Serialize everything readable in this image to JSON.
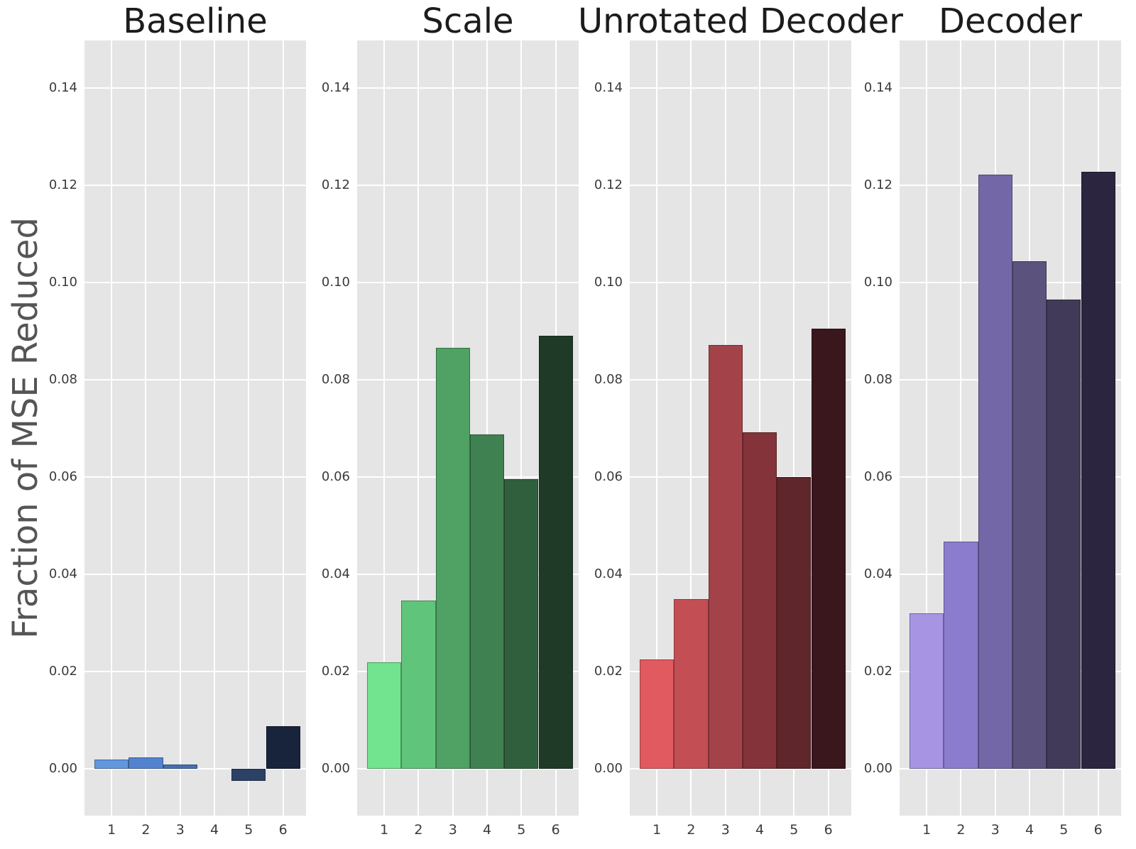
{
  "figure": {
    "ylabel": "Fraction of MSE Reduced",
    "background_color": "#ffffff",
    "panel_background_color": "#e5e5e5",
    "grid_color": "#ffffff",
    "title_color": "#1c1c1c",
    "tick_label_color": "#3b3b3b",
    "ylabel_color": "#555555"
  },
  "chart_data": [
    {
      "type": "bar",
      "title": "Baseline",
      "categories": [
        "1",
        "2",
        "3",
        "4",
        "5",
        "6"
      ],
      "values": [
        0.002,
        0.0023,
        0.0009,
        0.0,
        -0.0025,
        0.0088
      ],
      "colors": [
        "#6197de",
        "#5383cf",
        "#4670b2",
        "#38598c",
        "#2c4166",
        "#18233c"
      ],
      "xlabel": "",
      "ylabel": "Fraction of MSE Reduced",
      "ylim": [
        -0.0096,
        0.1498
      ],
      "yticks": [
        0.0,
        0.02,
        0.04,
        0.06,
        0.08,
        0.1,
        0.12,
        0.14
      ],
      "ytick_labels": [
        "0.00",
        "0.02",
        "0.04",
        "0.06",
        "0.08",
        "0.10",
        "0.12",
        "0.14"
      ],
      "grid": true,
      "legend": false
    },
    {
      "type": "bar",
      "title": "Scale",
      "categories": [
        "1",
        "2",
        "3",
        "4",
        "5",
        "6"
      ],
      "values": [
        0.0219,
        0.0346,
        0.0866,
        0.0688,
        0.0596,
        0.0891
      ],
      "colors": [
        "#72e38e",
        "#60c47b",
        "#4fa263",
        "#3f8150",
        "#305f3d",
        "#1f3a27"
      ],
      "xlabel": "",
      "ylabel": "",
      "ylim": [
        -0.0096,
        0.1498
      ],
      "yticks": [
        0.0,
        0.02,
        0.04,
        0.06,
        0.08,
        0.1,
        0.12,
        0.14
      ],
      "ytick_labels": [
        "0.00",
        "0.02",
        "0.04",
        "0.06",
        "0.08",
        "0.10",
        "0.12",
        "0.14"
      ],
      "grid": true,
      "legend": false
    },
    {
      "type": "bar",
      "title": "Unrotated Decoder",
      "categories": [
        "1",
        "2",
        "3",
        "4",
        "5",
        "6"
      ],
      "values": [
        0.0225,
        0.0349,
        0.0872,
        0.0692,
        0.06,
        0.0905
      ],
      "colors": [
        "#e05a5f",
        "#c34e54",
        "#a4424a",
        "#833339",
        "#5f262c",
        "#3a171c"
      ],
      "xlabel": "",
      "ylabel": "",
      "ylim": [
        -0.0096,
        0.1498
      ],
      "yticks": [
        0.0,
        0.02,
        0.04,
        0.06,
        0.08,
        0.1,
        0.12,
        0.14
      ],
      "ytick_labels": [
        "0.00",
        "0.02",
        "0.04",
        "0.06",
        "0.08",
        "0.10",
        "0.12",
        "0.14"
      ],
      "grid": true,
      "legend": false
    },
    {
      "type": "bar",
      "title": "Decoder",
      "categories": [
        "1",
        "2",
        "3",
        "4",
        "5",
        "6"
      ],
      "values": [
        0.032,
        0.0467,
        0.1222,
        0.1044,
        0.0965,
        0.1228
      ],
      "colors": [
        "#a795e3",
        "#8c7ccd",
        "#7467a8",
        "#5b527e",
        "#423a59",
        "#2b2540"
      ],
      "xlabel": "",
      "ylabel": "",
      "ylim": [
        -0.0096,
        0.1498
      ],
      "yticks": [
        0.0,
        0.02,
        0.04,
        0.06,
        0.08,
        0.1,
        0.12,
        0.14
      ],
      "ytick_labels": [
        "0.00",
        "0.02",
        "0.04",
        "0.06",
        "0.08",
        "0.10",
        "0.12",
        "0.14"
      ],
      "grid": true,
      "legend": false
    }
  ]
}
